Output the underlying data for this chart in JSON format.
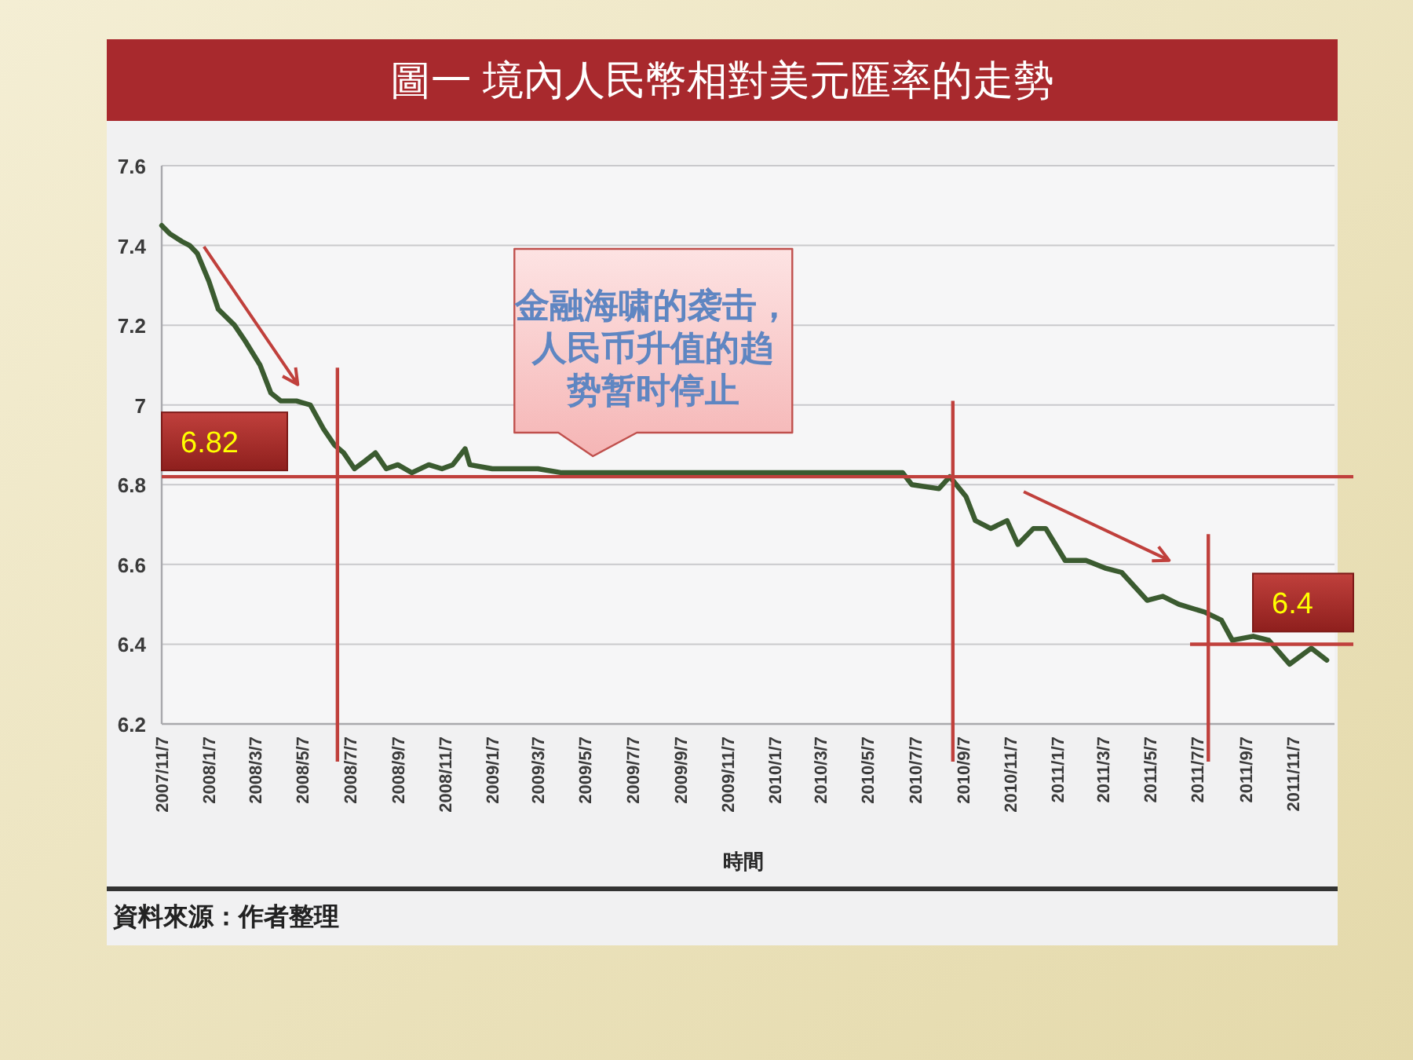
{
  "chart_data": {
    "type": "line",
    "title": "圖一 境內人民幣相對美元匯率的走勢",
    "xlabel": "時間",
    "x": [
      "2007-11-07",
      "2007-11-17",
      "2007-12-03",
      "2007-12-13",
      "2007-12-23",
      "2008-01-07",
      "2008-01-19",
      "2008-02-09",
      "2008-02-23",
      "2008-03-13",
      "2008-03-27",
      "2008-04-09",
      "2008-04-29",
      "2008-05-17",
      "2008-06-03",
      "2008-06-17",
      "2008-06-29",
      "2008-07-13",
      "2008-07-27",
      "2008-08-09",
      "2008-08-23",
      "2008-09-07",
      "2008-09-25",
      "2008-10-17",
      "2008-11-03",
      "2008-11-17",
      "2008-12-03",
      "2008-12-09",
      "2009-01-07",
      "2009-02-07",
      "2009-03-07",
      "2009-04-07",
      "2009-05-07",
      "2009-06-07",
      "2009-07-07",
      "2009-08-07",
      "2009-09-07",
      "2009-10-07",
      "2009-11-07",
      "2009-12-07",
      "2010-01-07",
      "2010-02-07",
      "2010-03-07",
      "2010-04-07",
      "2010-05-07",
      "2010-06-21",
      "2010-07-03",
      "2010-08-07",
      "2010-08-21",
      "2010-09-11",
      "2010-09-23",
      "2010-10-13",
      "2010-11-03",
      "2010-11-17",
      "2010-12-07",
      "2010-12-23",
      "2011-01-17",
      "2011-02-13",
      "2011-03-11",
      "2011-03-31",
      "2011-05-03",
      "2011-05-23",
      "2011-06-13",
      "2011-07-17",
      "2011-08-07",
      "2011-08-21",
      "2011-09-17",
      "2011-10-07",
      "2011-11-03",
      "2011-12-01",
      "2011-12-21"
    ],
    "series": [
      {
        "color": "#3b5b30",
        "values": [
          7.45,
          7.43,
          7.41,
          7.4,
          7.38,
          7.31,
          7.24,
          7.2,
          7.16,
          7.1,
          7.03,
          7.01,
          7.01,
          7.0,
          6.94,
          6.9,
          6.88,
          6.84,
          6.86,
          6.88,
          6.84,
          6.85,
          6.83,
          6.85,
          6.84,
          6.85,
          6.89,
          6.85,
          6.84,
          6.84,
          6.84,
          6.83,
          6.83,
          6.83,
          6.83,
          6.83,
          6.83,
          6.83,
          6.83,
          6.83,
          6.83,
          6.83,
          6.83,
          6.83,
          6.83,
          6.83,
          6.8,
          6.79,
          6.82,
          6.77,
          6.71,
          6.69,
          6.71,
          6.65,
          6.69,
          6.69,
          6.61,
          6.61,
          6.59,
          6.58,
          6.51,
          6.52,
          6.5,
          6.48,
          6.46,
          6.41,
          6.42,
          6.41,
          6.35,
          6.39,
          6.36
        ]
      }
    ],
    "xlim": [
      "2007-11-07",
      "2011-12-31"
    ],
    "xticks": [
      {
        "value": "2007-11-07",
        "label": "2007/11/7"
      },
      {
        "value": "2008-01-07",
        "label": "2008/1/7"
      },
      {
        "value": "2008-03-07",
        "label": "2008/3/7"
      },
      {
        "value": "2008-05-07",
        "label": "2008/5/7"
      },
      {
        "value": "2008-07-07",
        "label": "2008/7/7"
      },
      {
        "value": "2008-09-07",
        "label": "2008/9/7"
      },
      {
        "value": "2008-11-07",
        "label": "2008/11/7"
      },
      {
        "value": "2009-01-07",
        "label": "2009/1/7"
      },
      {
        "value": "2009-03-07",
        "label": "2009/3/7"
      },
      {
        "value": "2009-05-07",
        "label": "2009/5/7"
      },
      {
        "value": "2009-07-07",
        "label": "2009/7/7"
      },
      {
        "value": "2009-09-07",
        "label": "2009/9/7"
      },
      {
        "value": "2009-11-07",
        "label": "2009/11/7"
      },
      {
        "value": "2010-01-07",
        "label": "2010/1/7"
      },
      {
        "value": "2010-03-07",
        "label": "2010/3/7"
      },
      {
        "value": "2010-05-07",
        "label": "2010/5/7"
      },
      {
        "value": "2010-07-07",
        "label": "2010/7/7"
      },
      {
        "value": "2010-09-07",
        "label": "2010/9/7"
      },
      {
        "value": "2010-11-07",
        "label": "2010/11/7"
      },
      {
        "value": "2011-01-07",
        "label": "2011/1/7"
      },
      {
        "value": "2011-03-07",
        "label": "2011/3/7"
      },
      {
        "value": "2011-05-07",
        "label": "2011/5/7"
      },
      {
        "value": "2011-07-07",
        "label": "2011/7/7"
      },
      {
        "value": "2011-09-07",
        "label": "2011/9/7"
      },
      {
        "value": "2011-11-07",
        "label": "2011/11/7"
      }
    ],
    "ylim": [
      6.2,
      7.6
    ],
    "yticks": [
      6.2,
      6.4,
      6.6,
      6.8,
      7,
      7.2,
      7.4,
      7.6
    ],
    "grid": "y",
    "ref_lines": [
      {
        "axis": "y",
        "value": 6.82,
        "label": "6.82",
        "color": "#c0403c"
      },
      {
        "axis": "y",
        "value": 6.4,
        "label": "6.4",
        "color": "#c0403c"
      },
      {
        "axis": "x",
        "value": "2008-06-21",
        "color": "#c0403c"
      },
      {
        "axis": "x",
        "value": "2010-08-25",
        "color": "#c0403c"
      },
      {
        "axis": "x",
        "value": "2011-07-21",
        "color": "#c0403c"
      }
    ],
    "annotations": [
      {
        "text": "金融海啸的袭击，人民币升值的趋势暂时停止",
        "x": "2009-05-17",
        "y": 6.84
      },
      "資料來源：作者整理"
    ]
  }
}
